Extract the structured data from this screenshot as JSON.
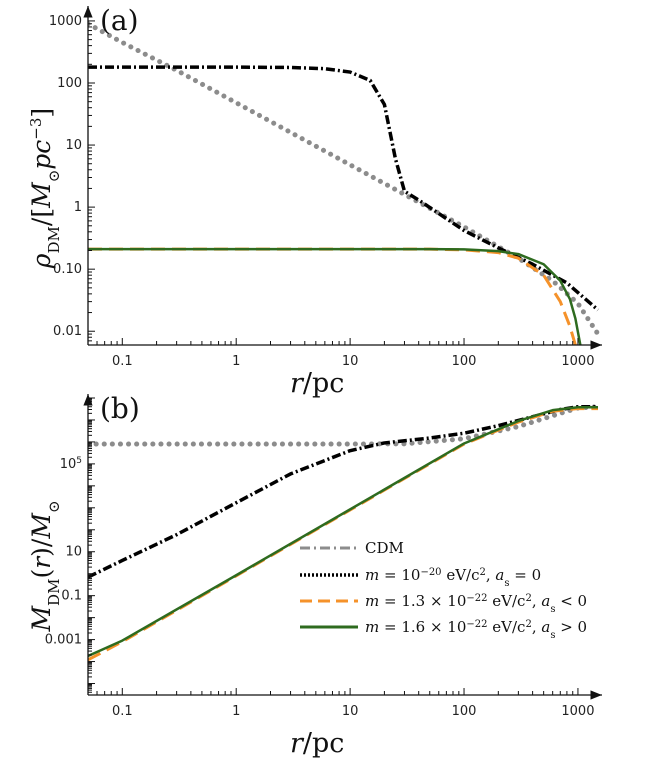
{
  "chart_data": [
    {
      "type": "line",
      "panel_label": "(a)",
      "xlabel": "r/pc",
      "ylabel": "ρ_DM/[M_⊙pc^−3]",
      "xscale": "log",
      "yscale": "log",
      "xlim": [
        0.05,
        1500
      ],
      "ylim": [
        0.006,
        1500
      ],
      "x_ticks": [
        {
          "value": 0.1,
          "label": "0.1"
        },
        {
          "value": 1,
          "label": "1"
        },
        {
          "value": 10,
          "label": "10"
        },
        {
          "value": 100,
          "label": "100"
        },
        {
          "value": 1000,
          "label": "1000"
        }
      ],
      "y_ticks": [
        {
          "value": 0.01,
          "label": "0.01"
        },
        {
          "value": 0.1,
          "label": "0.10"
        },
        {
          "value": 1,
          "label": "1"
        },
        {
          "value": 10,
          "label": "10"
        },
        {
          "value": 100,
          "label": "100"
        },
        {
          "value": 1000,
          "label": "1000"
        }
      ],
      "series": [
        {
          "key": "cdm",
          "color": "#8c8c8c",
          "style": "dotted-thick",
          "points": [
            [
              0.05,
              900
            ],
            [
              0.1,
              450
            ],
            [
              0.3,
              160
            ],
            [
              1,
              48
            ],
            [
              3,
              16
            ],
            [
              10,
              4.8
            ],
            [
              30,
              1.6
            ],
            [
              100,
              0.48
            ],
            [
              300,
              0.15
            ],
            [
              600,
              0.065
            ],
            [
              1000,
              0.028
            ],
            [
              1500,
              0.009
            ]
          ]
        },
        {
          "key": "m20",
          "color": "#000000",
          "style": "dashdot",
          "points": [
            [
              0.05,
              180
            ],
            [
              0.3,
              180
            ],
            [
              1,
              180
            ],
            [
              3,
              178
            ],
            [
              6,
              170
            ],
            [
              10,
              150
            ],
            [
              15,
              110
            ],
            [
              20,
              45
            ],
            [
              25,
              6
            ],
            [
              30,
              1.8
            ],
            [
              40,
              1.3
            ],
            [
              100,
              0.42
            ],
            [
              200,
              0.22
            ],
            [
              400,
              0.12
            ],
            [
              800,
              0.06
            ],
            [
              1500,
              0.022
            ]
          ]
        },
        {
          "key": "neg",
          "color": "#f5922a",
          "style": "dashed",
          "points": [
            [
              0.05,
              0.21
            ],
            [
              1,
              0.21
            ],
            [
              10,
              0.21
            ],
            [
              50,
              0.21
            ],
            [
              100,
              0.205
            ],
            [
              200,
              0.185
            ],
            [
              300,
              0.15
            ],
            [
              500,
              0.08
            ],
            [
              700,
              0.03
            ],
            [
              850,
              0.012
            ],
            [
              950,
              0.006
            ]
          ]
        },
        {
          "key": "pos",
          "color": "#2e6b1f",
          "style": "solid",
          "points": [
            [
              0.05,
              0.21
            ],
            [
              1,
              0.21
            ],
            [
              10,
              0.21
            ],
            [
              50,
              0.21
            ],
            [
              100,
              0.208
            ],
            [
              200,
              0.195
            ],
            [
              300,
              0.175
            ],
            [
              500,
              0.12
            ],
            [
              700,
              0.065
            ],
            [
              850,
              0.033
            ],
            [
              950,
              0.016
            ],
            [
              1050,
              0.006
            ]
          ]
        }
      ]
    },
    {
      "type": "line",
      "panel_label": "(b)",
      "xlabel": "r/pc",
      "ylabel": "M_DM(r)/M_⊙",
      "xscale": "log",
      "yscale": "log",
      "xlim": [
        0.05,
        1500
      ],
      "ylim": [
        3e-06,
        100000000
      ],
      "x_ticks": [
        {
          "value": 0.1,
          "label": "0.1"
        },
        {
          "value": 1,
          "label": "1"
        },
        {
          "value": 10,
          "label": "10"
        },
        {
          "value": 100,
          "label": "100"
        },
        {
          "value": 1000,
          "label": "1000"
        }
      ],
      "y_ticks": [
        {
          "value": 0.001,
          "label": "0.001"
        },
        {
          "value": 0.1,
          "label": "0.1"
        },
        {
          "value": 10,
          "label": "10"
        },
        {
          "value": 100000,
          "label": "10^5"
        }
      ],
      "series": [
        {
          "key": "cdm",
          "color": "#8c8c8c",
          "style": "dotted-thick",
          "points": [
            [
              0.05,
              800000
            ],
            [
              1,
              800000
            ],
            [
              10,
              800000
            ],
            [
              30,
              820000
            ],
            [
              100,
              1400000
            ],
            [
              300,
              5000000
            ],
            [
              700,
              20000000
            ],
            [
              1000,
              35000000
            ],
            [
              1500,
              40000000
            ]
          ]
        },
        {
          "key": "m20",
          "color": "#000000",
          "style": "dashdot",
          "points": [
            [
              0.05,
              0.7
            ],
            [
              0.1,
              4
            ],
            [
              0.3,
              60
            ],
            [
              1,
              1700
            ],
            [
              3,
              35000
            ],
            [
              10,
              400000
            ],
            [
              20,
              900000
            ],
            [
              50,
              1500000
            ],
            [
              100,
              2500000
            ],
            [
              200,
              5500000
            ],
            [
              400,
              14000000
            ],
            [
              700,
              30000000
            ],
            [
              1000,
              40000000
            ],
            [
              1500,
              40000000
            ]
          ]
        },
        {
          "key": "neg",
          "color": "#f5922a",
          "style": "dashed",
          "points": [
            [
              0.05,
              0.00012
            ],
            [
              0.1,
              0.0008
            ],
            [
              1,
              0.8
            ],
            [
              10,
              800
            ],
            [
              100,
              800000
            ],
            [
              300,
              8000000
            ],
            [
              600,
              25000000
            ],
            [
              1000,
              33000000
            ],
            [
              1500,
              33000000
            ]
          ]
        },
        {
          "key": "pos",
          "color": "#2e6b1f",
          "style": "solid",
          "points": [
            [
              0.05,
              0.00018
            ],
            [
              0.1,
              0.0009
            ],
            [
              1,
              0.85
            ],
            [
              10,
              850
            ],
            [
              100,
              850000
            ],
            [
              300,
              9000000
            ],
            [
              600,
              28000000
            ],
            [
              1000,
              38000000
            ],
            [
              1500,
              38000000
            ]
          ]
        }
      ],
      "legend": {
        "placement": "lower-right",
        "entries": [
          {
            "key": "cdm",
            "label": "CDM"
          },
          {
            "key": "m20",
            "label": "m = 10^−20 eV/c^2, a_s = 0"
          },
          {
            "key": "neg",
            "label": "m = 1.3 × 10^−22 eV/c^2, a_s < 0"
          },
          {
            "key": "pos",
            "label": "m = 1.6 × 10^−22 eV/c^2, a_s > 0"
          }
        ]
      }
    }
  ]
}
